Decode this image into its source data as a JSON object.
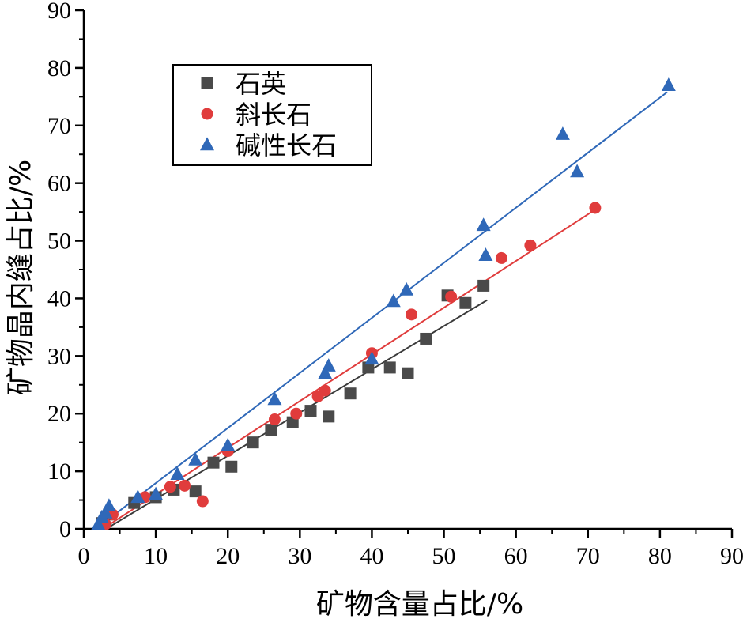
{
  "chart_data": {
    "type": "scatter",
    "title": "",
    "xlabel": "矿物含量占比/%",
    "ylabel": "矿物晶内缝占比/%",
    "xlim": [
      0,
      90
    ],
    "ylim": [
      0,
      90
    ],
    "xticks": [
      0,
      10,
      20,
      30,
      40,
      50,
      60,
      70,
      80,
      90
    ],
    "yticks": [
      0,
      10,
      20,
      30,
      40,
      50,
      60,
      70,
      80,
      90
    ],
    "legend_position": "top-left",
    "series": [
      {
        "name": "石英",
        "marker": "square",
        "color": "#4a4a4a",
        "fit_color": "#3a3a3a",
        "points": [
          [
            2.5,
            1.0
          ],
          [
            3.5,
            2.5
          ],
          [
            7,
            4.5
          ],
          [
            10,
            5.5
          ],
          [
            12.5,
            6.8
          ],
          [
            15.5,
            6.5
          ],
          [
            18,
            11.5
          ],
          [
            20.5,
            10.8
          ],
          [
            23.5,
            15.0
          ],
          [
            26,
            17.2
          ],
          [
            29,
            18.5
          ],
          [
            31.5,
            20.5
          ],
          [
            34,
            19.5
          ],
          [
            37,
            23.5
          ],
          [
            39.5,
            28.0
          ],
          [
            42.5,
            28.0
          ],
          [
            45,
            27.0
          ],
          [
            47.5,
            33.0
          ],
          [
            50.5,
            40.5
          ],
          [
            53,
            39.2
          ],
          [
            55.5,
            42.2
          ]
        ],
        "fit": [
          [
            3.5,
            0.3
          ],
          [
            56,
            39.7
          ]
        ]
      },
      {
        "name": "斜长石",
        "marker": "circle",
        "color": "#e03c3c",
        "fit_color": "#e03c3c",
        "points": [
          [
            3,
            0.8
          ],
          [
            4,
            2.5
          ],
          [
            8.5,
            5.5
          ],
          [
            12,
            7.3
          ],
          [
            14,
            7.5
          ],
          [
            16.5,
            4.8
          ],
          [
            20,
            13.5
          ],
          [
            26.5,
            19.0
          ],
          [
            29.5,
            20.0
          ],
          [
            32.5,
            23.0
          ],
          [
            33.5,
            24.0
          ],
          [
            40,
            30.5
          ],
          [
            45.5,
            37.2
          ],
          [
            51,
            40.3
          ],
          [
            58,
            47.0
          ],
          [
            62,
            49.2
          ],
          [
            71,
            55.7
          ]
        ],
        "fit": [
          [
            3,
            0.3
          ],
          [
            71,
            55.4
          ]
        ]
      },
      {
        "name": "碱性长石",
        "marker": "triangle",
        "color": "#2f68b8",
        "fit_color": "#2f68b8",
        "points": [
          [
            2,
            0.8
          ],
          [
            2.5,
            2.0
          ],
          [
            3,
            2.8
          ],
          [
            3.5,
            4.0
          ],
          [
            7.5,
            5.5
          ],
          [
            10,
            6.0
          ],
          [
            13,
            9.5
          ],
          [
            15.5,
            12.0
          ],
          [
            20,
            14.5
          ],
          [
            26.5,
            22.5
          ],
          [
            33.5,
            27.0
          ],
          [
            34,
            28.3
          ],
          [
            40,
            29.5
          ],
          [
            43,
            39.5
          ],
          [
            44.8,
            41.5
          ],
          [
            55.5,
            52.7
          ],
          [
            55.8,
            47.5
          ],
          [
            66.5,
            68.5
          ],
          [
            68.5,
            62.0
          ],
          [
            81.2,
            77.0
          ]
        ],
        "fit": [
          [
            2,
            0.3
          ],
          [
            81,
            75.8
          ]
        ]
      }
    ]
  }
}
